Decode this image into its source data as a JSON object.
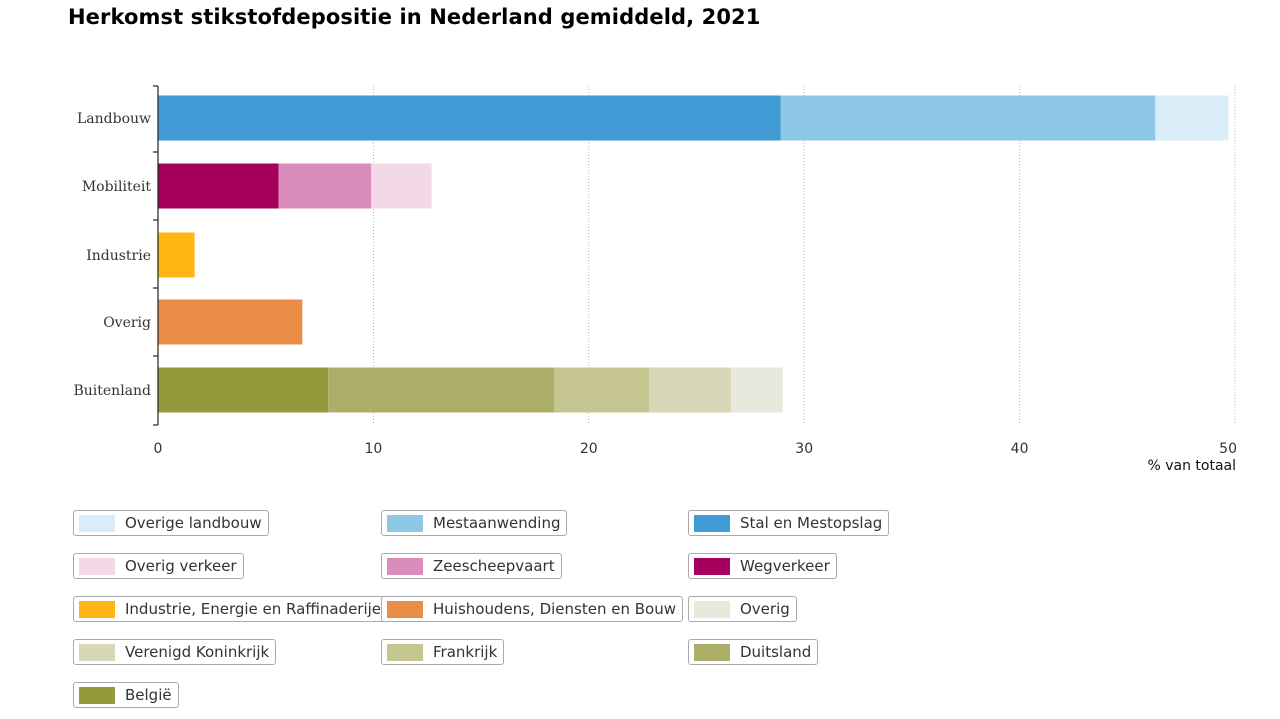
{
  "title": "Herkomst stikstofdepositie in Nederland gemiddeld, 2021",
  "chart_data": {
    "type": "bar",
    "orientation": "horizontal",
    "stacked": true,
    "title": "Herkomst stikstofdepositie in Nederland gemiddeld, 2021",
    "categories": [
      "Landbouw",
      "Mobiliteit",
      "Industrie",
      "Overig",
      "Buitenland"
    ],
    "xlabel": "% van totaal",
    "xlim": [
      0,
      50
    ],
    "xticks": [
      0,
      10,
      20,
      30,
      40,
      50
    ],
    "grid": "vertical dotted",
    "legend_position": "bottom",
    "series": [
      {
        "name": "Stal en Mestopslag",
        "color": "#419bd4",
        "values": [
          28.9,
          0,
          0,
          0,
          0
        ]
      },
      {
        "name": "Mestaanwending",
        "color": "#8fc8e7",
        "values": [
          17.4,
          0,
          0,
          0,
          0
        ]
      },
      {
        "name": "Overige landbouw",
        "color": "#d9ecf8",
        "values": [
          3.4,
          0,
          0,
          0,
          0
        ]
      },
      {
        "name": "Wegverkeer",
        "color": "#a6005f",
        "values": [
          0,
          5.6,
          0,
          0,
          0
        ]
      },
      {
        "name": "Zeescheepvaart",
        "color": "#da8cba",
        "values": [
          0,
          4.3,
          0,
          0,
          0
        ]
      },
      {
        "name": "Overig verkeer",
        "color": "#f3d9e8",
        "values": [
          0,
          2.8,
          0,
          0,
          0
        ]
      },
      {
        "name": "Industrie, Energie en Raffinaderijen",
        "color": "#ffb612",
        "values": [
          0,
          0,
          1.7,
          0,
          0
        ]
      },
      {
        "name": "Huishoudens, Diensten en Bouw",
        "color": "#e98c46",
        "values": [
          0,
          0,
          0,
          6.7,
          0
        ]
      },
      {
        "name": "België",
        "color": "#949a3b",
        "values": [
          0,
          0,
          0,
          0,
          7.9
        ]
      },
      {
        "name": "Duitsland",
        "color": "#adaf69",
        "values": [
          0,
          0,
          0,
          0,
          10.5
        ]
      },
      {
        "name": "Frankrijk",
        "color": "#c4c58f",
        "values": [
          0,
          0,
          0,
          0,
          4.4
        ]
      },
      {
        "name": "Verenigd Koninkrijk",
        "color": "#d8d8b8",
        "values": [
          0,
          0,
          0,
          0,
          3.8
        ]
      },
      {
        "name": "Overig",
        "color": "#e8e8dc",
        "values": [
          0,
          0,
          0,
          0,
          2.4
        ]
      }
    ]
  },
  "legend": [
    {
      "label": "Overige landbouw",
      "color": "#d9ecf8"
    },
    {
      "label": "Mestaanwending",
      "color": "#8fc8e7"
    },
    {
      "label": "Stal en Mestopslag",
      "color": "#419bd4"
    },
    {
      "label": "Overig verkeer",
      "color": "#f3d9e8"
    },
    {
      "label": "Zeescheepvaart",
      "color": "#da8cba"
    },
    {
      "label": "Wegverkeer",
      "color": "#a6005f"
    },
    {
      "label": "Industrie, Energie en Raffinaderijen",
      "color": "#ffb612"
    },
    {
      "label": "Huishoudens, Diensten en Bouw",
      "color": "#e98c46"
    },
    {
      "label": "Overig",
      "color": "#e8e8dc"
    },
    {
      "label": "Verenigd Koninkrijk",
      "color": "#d8d8b8"
    },
    {
      "label": "Frankrijk",
      "color": "#c4c58f"
    },
    {
      "label": "Duitsland",
      "color": "#adaf69"
    },
    {
      "label": "België",
      "color": "#949a3b"
    }
  ]
}
